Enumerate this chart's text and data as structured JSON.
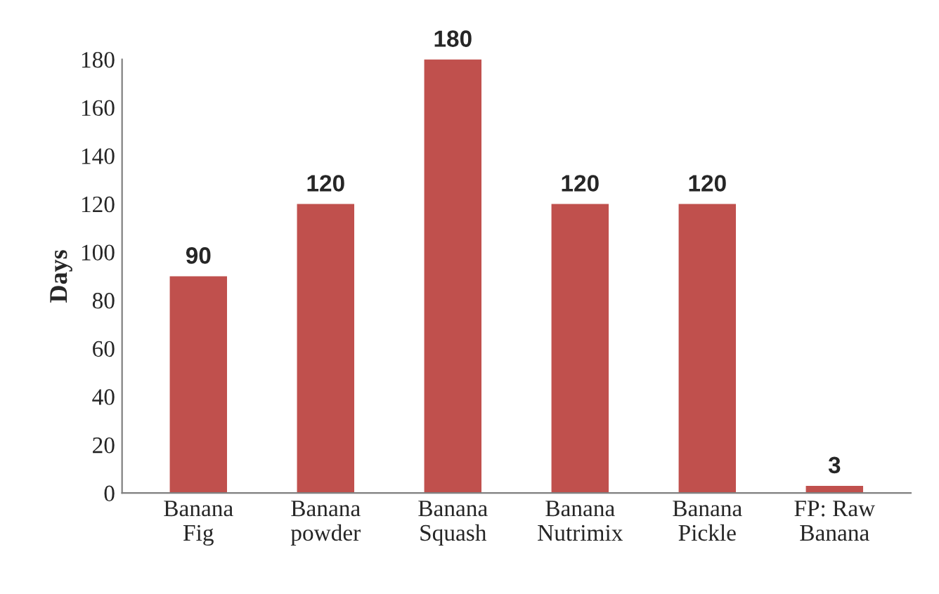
{
  "chart_data": {
    "type": "bar",
    "ylabel": "Days",
    "categories": [
      "Banana\nFig",
      "Banana\npowder",
      "Banana\nSquash",
      "Banana\nNutrimix",
      "Banana\nPickle",
      "FP: Raw\nBanana"
    ],
    "values": [
      90,
      120,
      180,
      120,
      120,
      3
    ],
    "color": "#c0504d",
    "ylim": [
      0,
      180
    ],
    "yticks": [
      0,
      20,
      40,
      60,
      80,
      100,
      120,
      140,
      160,
      180
    ],
    "grid": false,
    "data_labels": true
  }
}
